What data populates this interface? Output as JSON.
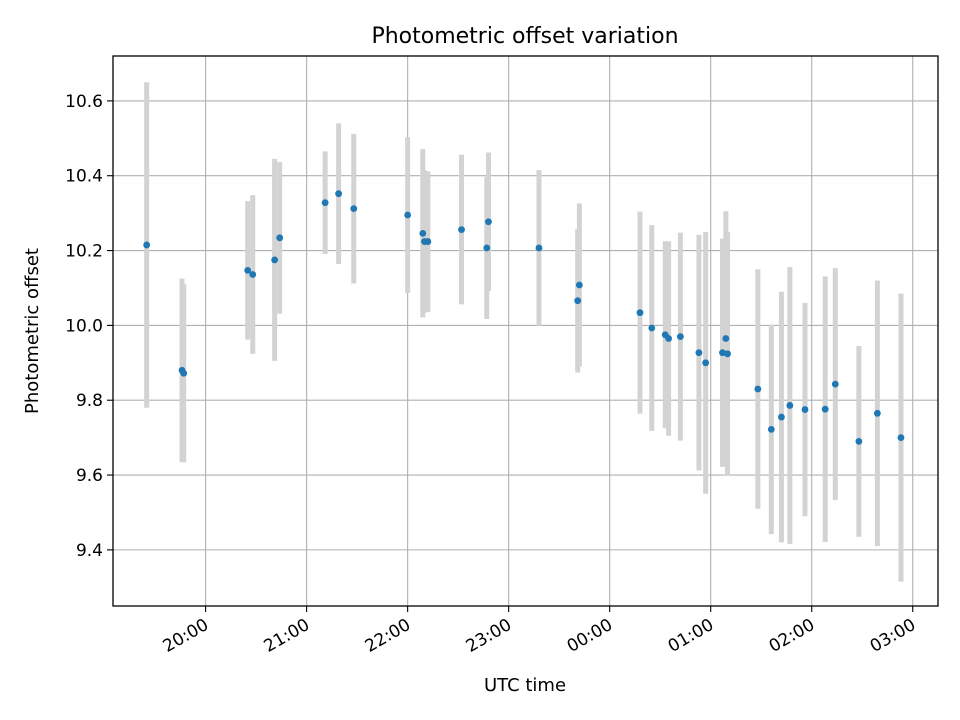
{
  "chart_data": {
    "type": "scatter",
    "title": "Photometric offset variation",
    "xlabel": "UTC time",
    "ylabel": "Photometric offset",
    "x_ticks": [
      "20:00",
      "21:00",
      "22:00",
      "23:00",
      "00:00",
      "01:00",
      "02:00",
      "03:00"
    ],
    "y_ticks": [
      "9.4",
      "9.6",
      "9.8",
      "10.0",
      "10.2",
      "10.4",
      "10.6"
    ],
    "xlim": [
      "19:05",
      "03:15"
    ],
    "ylim": [
      9.25,
      10.72
    ],
    "grid": true,
    "colors": {
      "point": "#1f77b4",
      "errorbar": "#d3d3d3",
      "grid": "#b0b0b0"
    },
    "points": [
      {
        "t": "19:25",
        "y": 10.215,
        "err": 0.435
      },
      {
        "t": "19:46",
        "y": 9.88,
        "err": 0.245
      },
      {
        "t": "19:47",
        "y": 9.872,
        "err": 0.238
      },
      {
        "t": "20:25",
        "y": 10.147,
        "err": 0.185
      },
      {
        "t": "20:28",
        "y": 10.136,
        "err": 0.212
      },
      {
        "t": "20:41",
        "y": 10.175,
        "err": 0.27
      },
      {
        "t": "20:44",
        "y": 10.234,
        "err": 0.203
      },
      {
        "t": "21:11",
        "y": 10.328,
        "err": 0.137
      },
      {
        "t": "21:19",
        "y": 10.352,
        "err": 0.188
      },
      {
        "t": "21:28",
        "y": 10.312,
        "err": 0.2
      },
      {
        "t": "22:00",
        "y": 10.295,
        "err": 0.208
      },
      {
        "t": "22:09",
        "y": 10.246,
        "err": 0.225
      },
      {
        "t": "22:10",
        "y": 10.224,
        "err": 0.19
      },
      {
        "t": "22:12",
        "y": 10.224,
        "err": 0.188
      },
      {
        "t": "22:32",
        "y": 10.256,
        "err": 0.2
      },
      {
        "t": "22:47",
        "y": 10.207,
        "err": 0.19
      },
      {
        "t": "22:48",
        "y": 10.277,
        "err": 0.185
      },
      {
        "t": "23:18",
        "y": 10.207,
        "err": 0.208
      },
      {
        "t": "23:41",
        "y": 10.066,
        "err": 0.192
      },
      {
        "t": "23:42",
        "y": 10.108,
        "err": 0.218
      },
      {
        "t": "00:18",
        "y": 10.034,
        "err": 0.27
      },
      {
        "t": "00:25",
        "y": 9.993,
        "err": 0.275
      },
      {
        "t": "00:33",
        "y": 9.975,
        "err": 0.25
      },
      {
        "t": "00:35",
        "y": 9.965,
        "err": 0.26
      },
      {
        "t": "00:42",
        "y": 9.97,
        "err": 0.278
      },
      {
        "t": "00:53",
        "y": 9.927,
        "err": 0.315
      },
      {
        "t": "00:57",
        "y": 9.9,
        "err": 0.35
      },
      {
        "t": "01:07",
        "y": 9.927,
        "err": 0.305
      },
      {
        "t": "01:09",
        "y": 9.965,
        "err": 0.34
      },
      {
        "t": "01:10",
        "y": 9.924,
        "err": 0.325
      },
      {
        "t": "01:28",
        "y": 9.83,
        "err": 0.32
      },
      {
        "t": "01:36",
        "y": 9.722,
        "err": 0.28
      },
      {
        "t": "01:42",
        "y": 9.755,
        "err": 0.335
      },
      {
        "t": "01:47",
        "y": 9.786,
        "err": 0.37
      },
      {
        "t": "01:56",
        "y": 9.775,
        "err": 0.285
      },
      {
        "t": "02:08",
        "y": 9.776,
        "err": 0.355
      },
      {
        "t": "02:14",
        "y": 9.843,
        "err": 0.31
      },
      {
        "t": "02:28",
        "y": 9.69,
        "err": 0.255
      },
      {
        "t": "02:39",
        "y": 9.765,
        "err": 0.355
      },
      {
        "t": "02:53",
        "y": 9.7,
        "err": 0.385
      }
    ]
  }
}
